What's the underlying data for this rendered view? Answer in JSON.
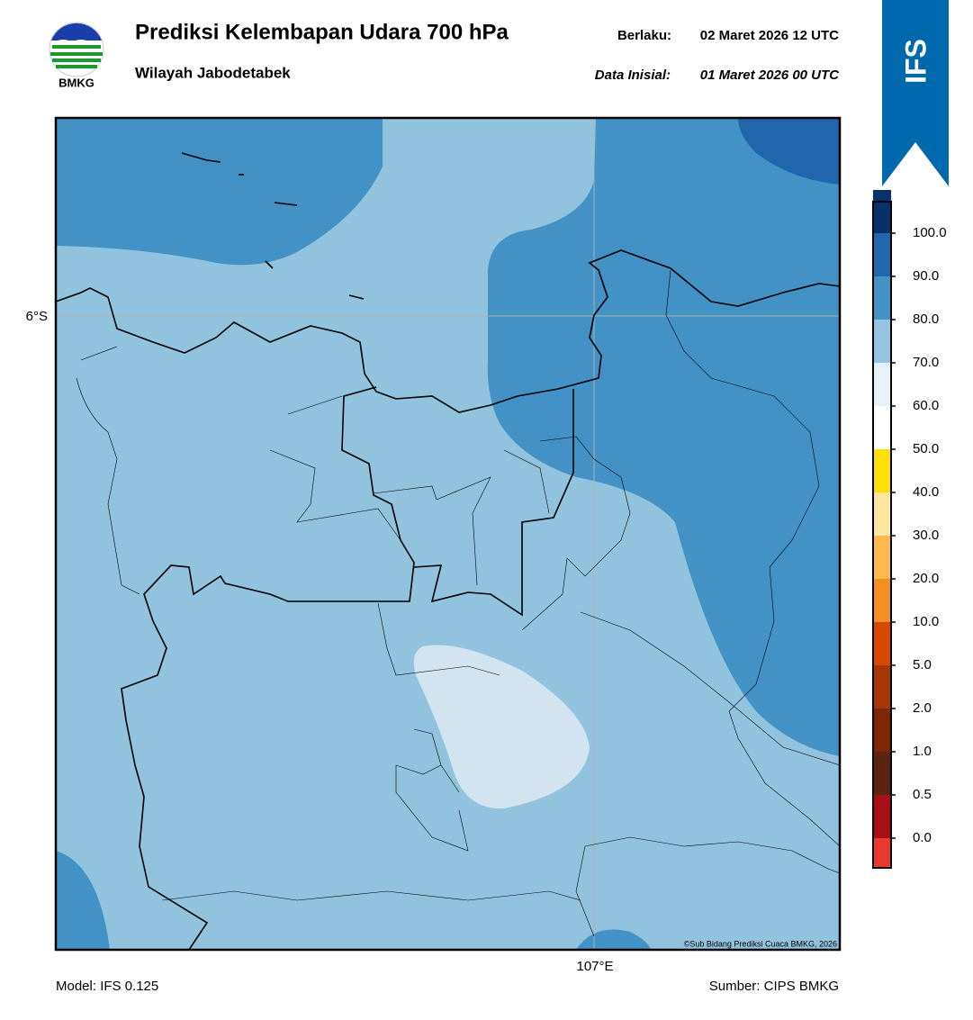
{
  "header": {
    "title": "Prediksi Kelembapan Udara 700 hPa",
    "subtitle": "Wilayah Jabodetabek",
    "valid_label": "Berlaku:",
    "valid_time": "02 Maret 2026 12 UTC",
    "init_label": "Data Inisial:",
    "init_time": "01 Maret 2026 00 UTC",
    "logo_text": "BMKG",
    "model_badge": "IFS"
  },
  "map": {
    "lat_label": "6°S",
    "lon_label": "107°E",
    "credit": "©Sub Bidang Prediksi Cuaca BMKG, 2026"
  },
  "colorbar": {
    "labels": [
      "0.0",
      "0.5",
      "1.0",
      "2.0",
      "5.0",
      "10.0",
      "20.0",
      "30.0",
      "40.0",
      "50.0",
      "60.0",
      "70.0",
      "80.0",
      "90.0",
      "100.0"
    ],
    "colors": [
      "#e8392c",
      "#a50f15",
      "#5a2410",
      "#7f2704",
      "#a63603",
      "#d94801",
      "#f3901f",
      "#fdb94d",
      "#fde7a0",
      "#ffe000",
      "#ffffff",
      "#e8f1f8",
      "#94c4df",
      "#4292c6",
      "#2166ac",
      "#08306b",
      "#2a0a4a"
    ]
  },
  "footer": {
    "model": "Model: IFS 0.125",
    "source": "Sumber: CIPS BMKG"
  }
}
